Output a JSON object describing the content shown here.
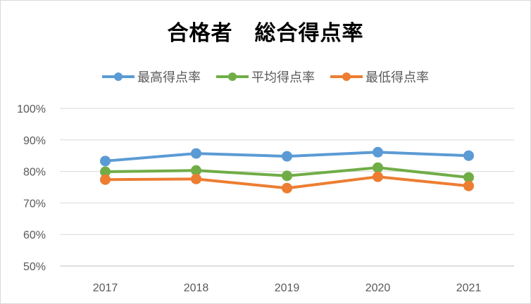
{
  "chart_data": {
    "type": "line",
    "title": "合格者　総合得点率",
    "categories": [
      "2017",
      "2018",
      "2019",
      "2020",
      "2021"
    ],
    "series": [
      {
        "name": "最高得点率",
        "color": "#5b9bd5",
        "values": [
          83.3,
          85.7,
          84.8,
          86.1,
          85.0
        ]
      },
      {
        "name": "平均得点率",
        "color": "#70ad47",
        "values": [
          79.9,
          80.3,
          78.6,
          81.2,
          78.1
        ]
      },
      {
        "name": "最低得点率",
        "color": "#ed7d31",
        "values": [
          77.4,
          77.6,
          74.7,
          78.3,
          75.4
        ]
      }
    ],
    "ylim": [
      50,
      100
    ],
    "yticks": [
      "100%",
      "90%",
      "80%",
      "70%",
      "60%",
      "50%"
    ],
    "grid": true,
    "legend_position": "top"
  }
}
